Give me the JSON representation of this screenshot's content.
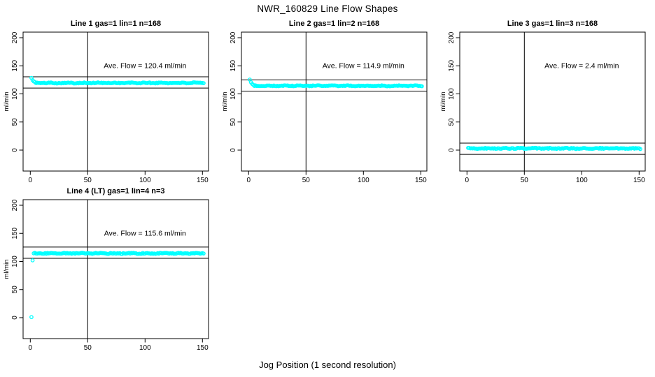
{
  "title": "NWR_160829  Line Flow Shapes",
  "xlabel": "Jog Position (1 second resolution)",
  "colors": {
    "points": "#00FFFF",
    "axis": "#000000",
    "background": "#FFFFFF"
  },
  "chart_data": [
    {
      "type": "scatter",
      "title": "Line 1 gas=1 lin=1 n=168",
      "ylabel": "ml/min",
      "x_ticks": [
        0,
        50,
        100,
        150
      ],
      "y_ticks": [
        0,
        50,
        100,
        150,
        200
      ],
      "xlim": [
        -6,
        156
      ],
      "ylim": [
        -31,
        210
      ],
      "n": 168,
      "ave_flow_ml_min": 120.4,
      "annotation": "Ave. Flow =  120.4  ml/min",
      "annotation_at": {
        "x": 100,
        "y": 150
      },
      "vline_x": 50,
      "hlines": [
        130.4,
        110.4
      ],
      "points": {
        "lead": [
          [
            1,
            128.5
          ],
          [
            2,
            124.5
          ],
          [
            3,
            122.3
          ],
          [
            4,
            121.2
          ]
        ],
        "band": {
          "x_start": 5,
          "x_end": 151,
          "step": 1,
          "mean": 119.5,
          "noise": 1.1
        },
        "seed": 101
      }
    },
    {
      "type": "scatter",
      "title": "Line 2 gas=1 lin=2 n=168",
      "ylabel": "ml/min",
      "x_ticks": [
        0,
        50,
        100,
        150
      ],
      "y_ticks": [
        0,
        50,
        100,
        150,
        200
      ],
      "xlim": [
        -6,
        156
      ],
      "ylim": [
        -31,
        210
      ],
      "n": 168,
      "ave_flow_ml_min": 114.9,
      "annotation": "Ave. Flow =  114.9  ml/min",
      "annotation_at": {
        "x": 100,
        "y": 150
      },
      "vline_x": 50,
      "hlines": [
        124.9,
        104.9
      ],
      "points": {
        "lead": [
          [
            1,
            125.5
          ],
          [
            2,
            120.8
          ],
          [
            3,
            117.8
          ],
          [
            4,
            116.2
          ]
        ],
        "band": {
          "x_start": 5,
          "x_end": 151,
          "step": 1,
          "mean": 114.4,
          "noise": 1.0
        },
        "seed": 202
      }
    },
    {
      "type": "scatter",
      "title": "Line 3 gas=1 lin=3 n=168",
      "ylabel": "ml/min",
      "x_ticks": [
        0,
        50,
        100,
        150
      ],
      "y_ticks": [
        0,
        50,
        100,
        150,
        200
      ],
      "xlim": [
        -6,
        156
      ],
      "ylim": [
        -31,
        210
      ],
      "n": 168,
      "ave_flow_ml_min": 2.4,
      "annotation": "Ave. Flow =  2.4  ml/min",
      "annotation_at": {
        "x": 100,
        "y": 150
      },
      "vline_x": 50,
      "hlines": [
        12.4,
        -7.6
      ],
      "points": {
        "lead": [],
        "band": {
          "x_start": 1,
          "x_end": 151,
          "step": 1,
          "mean": 3.0,
          "noise": 1.2
        },
        "seed": 303
      }
    },
    {
      "type": "scatter",
      "title": "Line 4 (LT) gas=1 lin=4 n=3",
      "ylabel": "ml/min",
      "x_ticks": [
        0,
        50,
        100,
        150
      ],
      "y_ticks": [
        0,
        50,
        100,
        150,
        200
      ],
      "xlim": [
        -6,
        156
      ],
      "ylim": [
        -31,
        210
      ],
      "n": 3,
      "ave_flow_ml_min": 115.6,
      "annotation": "Ave. Flow =  115.6  ml/min",
      "annotation_at": {
        "x": 100,
        "y": 150
      },
      "vline_x": 50,
      "hlines": [
        125.6,
        105.6
      ],
      "points": {
        "lead": [
          [
            1,
            1
          ],
          [
            2,
            102
          ]
        ],
        "band": {
          "x_start": 3,
          "x_end": 151,
          "step": 1,
          "mean": 114.4,
          "noise": 1.1
        },
        "seed": 404
      }
    }
  ]
}
